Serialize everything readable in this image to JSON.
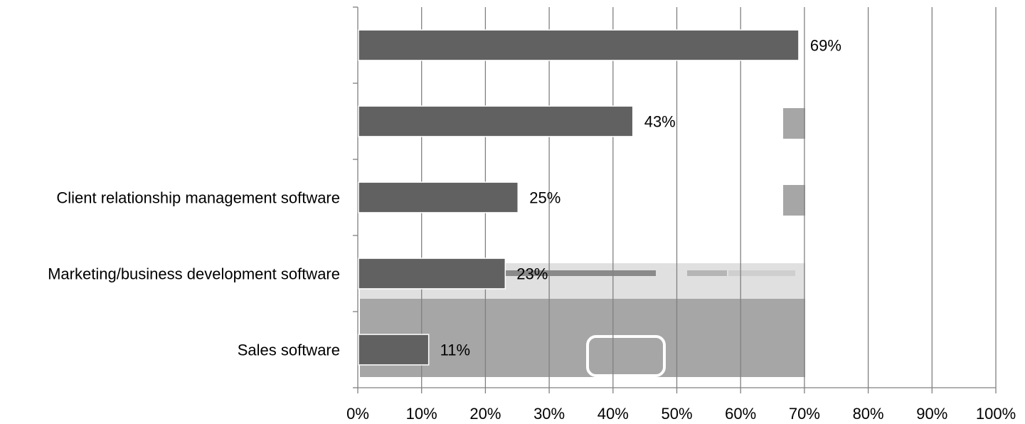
{
  "chart_data": {
    "type": "bar",
    "orientation": "horizontal",
    "categories": [
      "",
      "",
      "Client relationship management software",
      "Marketing/business development software",
      "Sales software"
    ],
    "values": [
      69,
      43,
      25,
      23,
      11
    ],
    "data_labels": [
      "69%",
      "43%",
      "25%",
      "23%",
      "11%"
    ],
    "xlim": [
      0,
      100
    ],
    "x_ticks": [
      "0%",
      "10%",
      "20%",
      "30%",
      "40%",
      "50%",
      "60%",
      "70%",
      "80%",
      "90%",
      "100%"
    ],
    "grid": true,
    "legend": "none",
    "title": "",
    "xlabel": "",
    "ylabel": "",
    "colors": {
      "bar": "#616161",
      "bar_edge": "#ffffff",
      "gridline": "#808080",
      "axis": "#808080",
      "background_artifact": "#a6a6a6"
    }
  }
}
